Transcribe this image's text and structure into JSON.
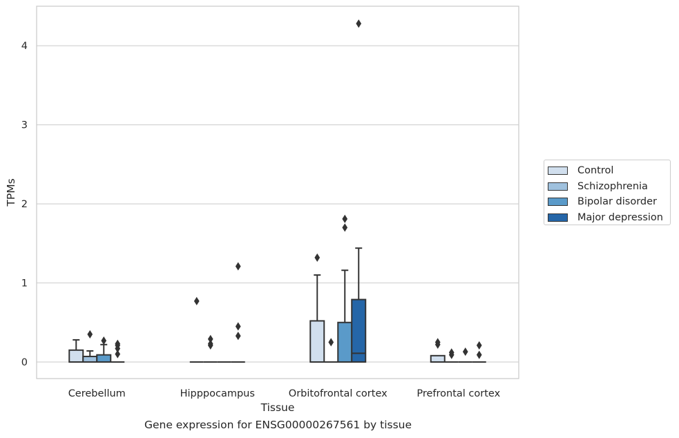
{
  "caption": "Gene expression for ENSG00000267561 by tissue",
  "chart_data": {
    "type": "box",
    "xlabel": "Tissue",
    "ylabel": "TPMs",
    "ylim": [
      -0.21,
      4.5
    ],
    "yticks": [
      0,
      1,
      2,
      3,
      4
    ],
    "grid": true,
    "legend_position": "right",
    "categories": [
      "Cerebellum",
      "Hipppocampus",
      "Orbitofrontal cortex",
      "Prefrontal cortex"
    ],
    "series": [
      {
        "name": "Control",
        "color": "#d1dfee",
        "boxes": [
          {
            "q1": 0,
            "median": 0,
            "q3": 0.15,
            "whisker_low": 0,
            "whisker_high": 0.28,
            "outliers": []
          },
          {
            "q1": 0,
            "median": 0,
            "q3": 0,
            "whisker_low": 0,
            "whisker_high": 0,
            "outliers": [
              0.77
            ]
          },
          {
            "q1": 0,
            "median": 0,
            "q3": 0.52,
            "whisker_low": 0,
            "whisker_high": 1.1,
            "outliers": [
              1.32
            ]
          },
          {
            "q1": 0,
            "median": 0,
            "q3": 0.08,
            "whisker_low": 0,
            "whisker_high": 0.08,
            "outliers": [
              0.22,
              0.25
            ]
          }
        ]
      },
      {
        "name": "Schizophrenia",
        "color": "#9fc1de",
        "boxes": [
          {
            "q1": 0,
            "median": 0,
            "q3": 0.07,
            "whisker_low": 0,
            "whisker_high": 0.14,
            "outliers": [
              0.35
            ]
          },
          {
            "q1": 0,
            "median": 0,
            "q3": 0,
            "whisker_low": 0,
            "whisker_high": 0,
            "outliers": [
              0.21,
              0.23,
              0.29
            ]
          },
          {
            "q1": 0,
            "median": 0,
            "q3": 0,
            "whisker_low": 0,
            "whisker_high": 0,
            "outliers": [
              0.25
            ]
          },
          {
            "q1": 0,
            "median": 0,
            "q3": 0,
            "whisker_low": 0,
            "whisker_high": 0,
            "outliers": [
              0.09,
              0.12
            ]
          }
        ]
      },
      {
        "name": "Bipolar disorder",
        "color": "#5a9ac9",
        "boxes": [
          {
            "q1": 0,
            "median": 0,
            "q3": 0.09,
            "whisker_low": 0,
            "whisker_high": 0.22,
            "outliers": [
              0.27
            ]
          },
          {
            "q1": 0,
            "median": 0,
            "q3": 0,
            "whisker_low": 0,
            "whisker_high": 0,
            "outliers": []
          },
          {
            "q1": 0,
            "median": 0,
            "q3": 0.5,
            "whisker_low": 0,
            "whisker_high": 1.16,
            "outliers": [
              1.7,
              1.81
            ]
          },
          {
            "q1": 0,
            "median": 0,
            "q3": 0,
            "whisker_low": 0,
            "whisker_high": 0,
            "outliers": [
              0.13
            ]
          }
        ]
      },
      {
        "name": "Major depression",
        "color": "#2566a8",
        "boxes": [
          {
            "q1": 0,
            "median": 0,
            "q3": 0,
            "whisker_low": 0,
            "whisker_high": 0,
            "outliers": [
              0.1,
              0.17,
              0.21,
              0.23
            ]
          },
          {
            "q1": 0,
            "median": 0,
            "q3": 0,
            "whisker_low": 0,
            "whisker_high": 0,
            "outliers": [
              0.33,
              0.45,
              1.21
            ]
          },
          {
            "q1": 0,
            "median": 0.11,
            "q3": 0.79,
            "whisker_low": 0,
            "whisker_high": 1.44,
            "outliers": [
              4.28
            ]
          },
          {
            "q1": 0,
            "median": 0,
            "q3": 0,
            "whisker_low": 0,
            "whisker_high": 0,
            "outliers": [
              0.09,
              0.21
            ]
          }
        ]
      }
    ]
  }
}
